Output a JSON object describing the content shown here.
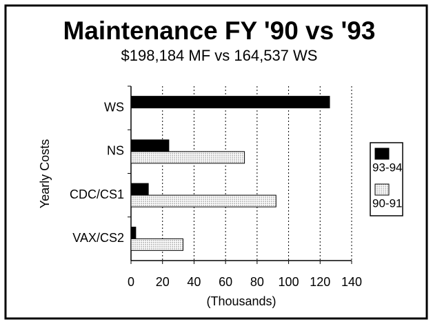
{
  "chart_data": {
    "type": "hbar",
    "title": "Maintenance FY '90 vs '93",
    "subtitle": "$198,184 MF vs 164,537 WS",
    "x_label": "(Thousands)",
    "y_label": "Yearly Costs",
    "categories": [
      "WS",
      "NS",
      "CDC/CS1",
      "VAX/CS2"
    ],
    "series": [
      {
        "name": "93-94",
        "color": "#000000",
        "values": [
          126,
          24,
          11,
          3
        ]
      },
      {
        "name": "90-91",
        "color": "#c4c4c4",
        "values": [
          null,
          72,
          92,
          33
        ]
      }
    ],
    "xlim": [
      0,
      140
    ],
    "xticks": [
      0,
      20,
      40,
      60,
      80,
      100,
      120,
      140
    ],
    "grid": true,
    "legend": "right"
  }
}
